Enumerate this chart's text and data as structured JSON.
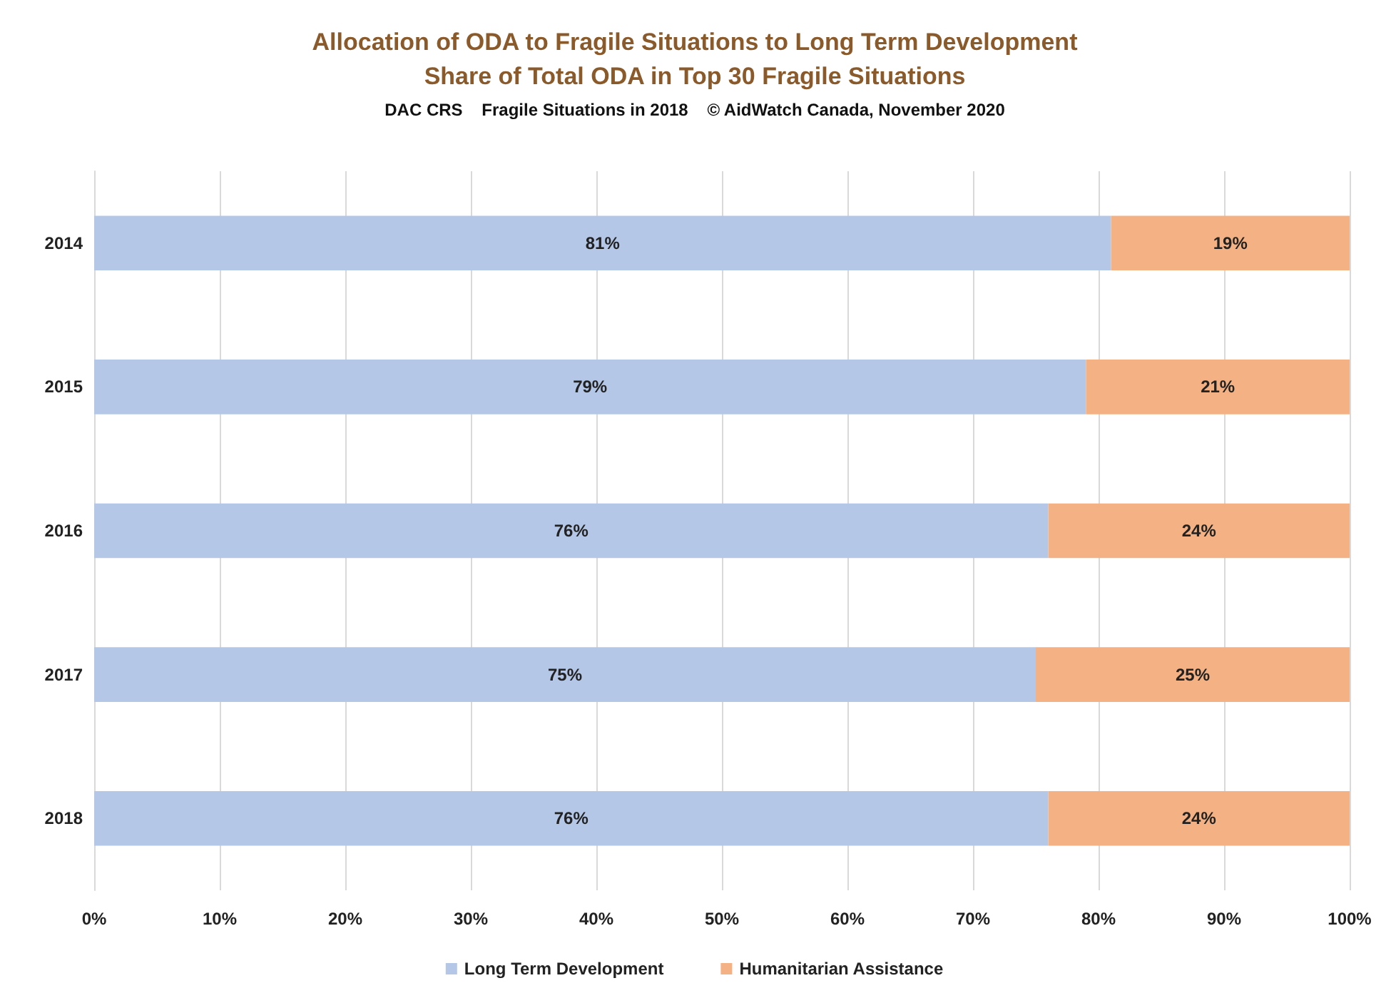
{
  "chart_data": {
    "type": "bar",
    "orientation": "horizontal",
    "stacked": true,
    "title": "Allocation of ODA to Fragile Situations to Long Term Development",
    "subtitle": "Share of Total ODA in Top 30 Fragile Situations",
    "annotations": [
      "DAC CRS    Fragile Situations in 2018    © AidWatch Canada, November 2020"
    ],
    "categories": [
      "2014",
      "2015",
      "2016",
      "2017",
      "2018"
    ],
    "series": [
      {
        "name": "Long Term Development",
        "color": "#b4c7e7",
        "values": [
          81,
          79,
          76,
          75,
          76
        ],
        "value_labels": [
          "81%",
          "79%",
          "76%",
          "75%",
          "76%"
        ]
      },
      {
        "name": "Humanitarian Assistance",
        "color": "#f4b183",
        "values": [
          19,
          21,
          24,
          25,
          24
        ],
        "value_labels": [
          "19%",
          "21%",
          "24%",
          "25%",
          "24%"
        ]
      }
    ],
    "xlim": [
      0,
      100
    ],
    "xticks": [
      {
        "value": 0,
        "label": "0%"
      },
      {
        "value": 10,
        "label": "10%"
      },
      {
        "value": 20,
        "label": "20%"
      },
      {
        "value": 30,
        "label": "30%"
      },
      {
        "value": 40,
        "label": "40%"
      },
      {
        "value": 50,
        "label": "50%"
      },
      {
        "value": 60,
        "label": "60%"
      },
      {
        "value": 70,
        "label": "70%"
      },
      {
        "value": 80,
        "label": "80%"
      },
      {
        "value": 90,
        "label": "90%"
      },
      {
        "value": 100,
        "label": "100%"
      }
    ],
    "grid": "x",
    "legend": "bottom"
  }
}
